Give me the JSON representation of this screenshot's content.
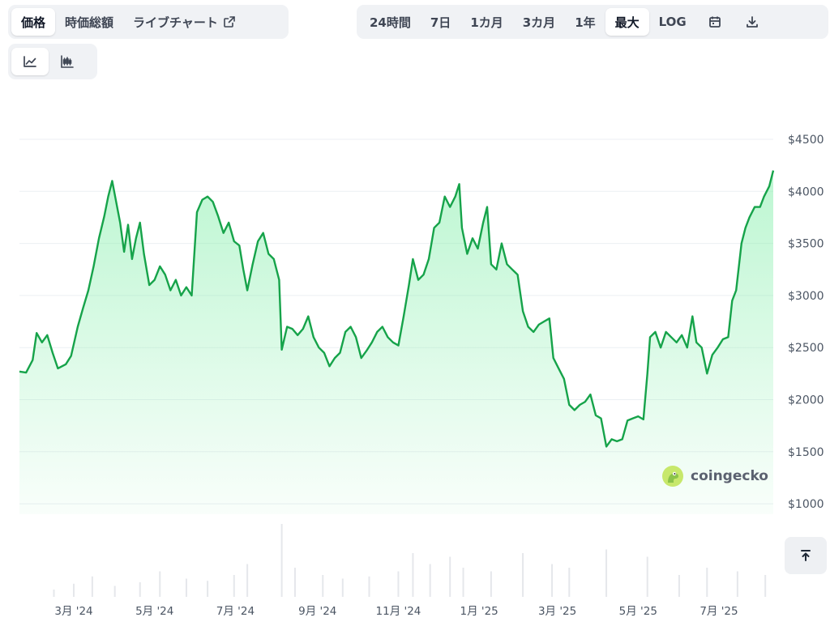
{
  "tabs": [
    {
      "label": "価格",
      "active": true
    },
    {
      "label": "時価総額",
      "active": false
    },
    {
      "label": "ライブチャート",
      "active": false,
      "external": true
    }
  ],
  "ranges": [
    {
      "label": "24時間",
      "active": false
    },
    {
      "label": "7日",
      "active": false
    },
    {
      "label": "1カ月",
      "active": false
    },
    {
      "label": "3カ月",
      "active": false
    },
    {
      "label": "1年",
      "active": false
    },
    {
      "label": "最大",
      "active": true
    },
    {
      "label": "LOG",
      "active": false
    }
  ],
  "range_icons": [
    "calendar-icon",
    "download-icon"
  ],
  "views": [
    {
      "icon": "line-chart-icon",
      "active": true
    },
    {
      "icon": "candlestick-chart-icon",
      "active": false
    }
  ],
  "watermark": {
    "label": "coingecko"
  },
  "colors": {
    "line": "#16a34a",
    "area_top": "#86efac",
    "grid": "#eceff3",
    "volume": "#e5e7eb"
  },
  "chart_data": {
    "type": "area",
    "title": "",
    "xlabel": "",
    "ylabel": "",
    "ylim": [
      800,
      4600
    ],
    "yticks": [
      1000,
      1500,
      2000,
      2500,
      3000,
      3500,
      4000,
      4500
    ],
    "ytick_labels": [
      "$1000",
      "$1500",
      "$2000",
      "$2500",
      "$3000",
      "$3500",
      "$4000",
      "$4500"
    ],
    "x_ticks": [
      {
        "label": "3月 '24",
        "date": "2024-03-01"
      },
      {
        "label": "5月 '24",
        "date": "2024-05-01"
      },
      {
        "label": "7月 '24",
        "date": "2024-07-01"
      },
      {
        "label": "9月 '24",
        "date": "2024-09-01"
      },
      {
        "label": "11月 '24",
        "date": "2024-11-01"
      },
      {
        "label": "1月 '25",
        "date": "2025-01-01"
      },
      {
        "label": "3月 '25",
        "date": "2025-03-01"
      },
      {
        "label": "5月 '25",
        "date": "2025-05-01"
      },
      {
        "label": "7月 '25",
        "date": "2025-07-01"
      }
    ],
    "grid": true,
    "series": [
      {
        "points": [
          [
            "2024-01-20",
            2270
          ],
          [
            "2024-01-25",
            2260
          ],
          [
            "2024-01-30",
            2380
          ],
          [
            "2024-02-02",
            2640
          ],
          [
            "2024-02-06",
            2550
          ],
          [
            "2024-02-10",
            2620
          ],
          [
            "2024-02-14",
            2450
          ],
          [
            "2024-02-18",
            2300
          ],
          [
            "2024-02-24",
            2340
          ],
          [
            "2024-02-28",
            2420
          ],
          [
            "2024-03-04",
            2700
          ],
          [
            "2024-03-08",
            2880
          ],
          [
            "2024-03-12",
            3050
          ],
          [
            "2024-03-16",
            3280
          ],
          [
            "2024-03-20",
            3550
          ],
          [
            "2024-03-24",
            3760
          ],
          [
            "2024-03-27",
            3950
          ],
          [
            "2024-03-30",
            4100
          ],
          [
            "2024-04-02",
            3900
          ],
          [
            "2024-04-05",
            3700
          ],
          [
            "2024-04-08",
            3420
          ],
          [
            "2024-04-11",
            3680
          ],
          [
            "2024-04-14",
            3350
          ],
          [
            "2024-04-17",
            3550
          ],
          [
            "2024-04-20",
            3700
          ],
          [
            "2024-04-23",
            3400
          ],
          [
            "2024-04-27",
            3100
          ],
          [
            "2024-05-01",
            3150
          ],
          [
            "2024-05-05",
            3280
          ],
          [
            "2024-05-09",
            3200
          ],
          [
            "2024-05-13",
            3050
          ],
          [
            "2024-05-17",
            3150
          ],
          [
            "2024-05-21",
            3000
          ],
          [
            "2024-05-25",
            3080
          ],
          [
            "2024-05-29",
            3000
          ],
          [
            "2024-06-02",
            3800
          ],
          [
            "2024-06-06",
            3920
          ],
          [
            "2024-06-10",
            3950
          ],
          [
            "2024-06-14",
            3900
          ],
          [
            "2024-06-18",
            3760
          ],
          [
            "2024-06-22",
            3600
          ],
          [
            "2024-06-26",
            3700
          ],
          [
            "2024-06-30",
            3520
          ],
          [
            "2024-07-04",
            3480
          ],
          [
            "2024-07-07",
            3250
          ],
          [
            "2024-07-10",
            3050
          ],
          [
            "2024-07-14",
            3300
          ],
          [
            "2024-07-18",
            3520
          ],
          [
            "2024-07-22",
            3600
          ],
          [
            "2024-07-26",
            3400
          ],
          [
            "2024-07-30",
            3350
          ],
          [
            "2024-08-03",
            3150
          ],
          [
            "2024-08-05",
            2480
          ],
          [
            "2024-08-09",
            2700
          ],
          [
            "2024-08-13",
            2680
          ],
          [
            "2024-08-17",
            2620
          ],
          [
            "2024-08-21",
            2680
          ],
          [
            "2024-08-25",
            2800
          ],
          [
            "2024-08-29",
            2600
          ],
          [
            "2024-09-02",
            2500
          ],
          [
            "2024-09-06",
            2450
          ],
          [
            "2024-09-10",
            2320
          ],
          [
            "2024-09-14",
            2400
          ],
          [
            "2024-09-18",
            2450
          ],
          [
            "2024-09-22",
            2650
          ],
          [
            "2024-09-26",
            2700
          ],
          [
            "2024-09-30",
            2600
          ],
          [
            "2024-10-04",
            2400
          ],
          [
            "2024-10-08",
            2470
          ],
          [
            "2024-10-12",
            2550
          ],
          [
            "2024-10-16",
            2650
          ],
          [
            "2024-10-20",
            2700
          ],
          [
            "2024-10-24",
            2600
          ],
          [
            "2024-10-28",
            2550
          ],
          [
            "2024-11-01",
            2520
          ],
          [
            "2024-11-05",
            2800
          ],
          [
            "2024-11-09",
            3100
          ],
          [
            "2024-11-12",
            3350
          ],
          [
            "2024-11-16",
            3150
          ],
          [
            "2024-11-20",
            3200
          ],
          [
            "2024-11-24",
            3350
          ],
          [
            "2024-11-28",
            3650
          ],
          [
            "2024-12-02",
            3700
          ],
          [
            "2024-12-06",
            3950
          ],
          [
            "2024-12-10",
            3850
          ],
          [
            "2024-12-14",
            3950
          ],
          [
            "2024-12-17",
            4070
          ],
          [
            "2024-12-19",
            3650
          ],
          [
            "2024-12-23",
            3400
          ],
          [
            "2024-12-27",
            3550
          ],
          [
            "2024-12-31",
            3450
          ],
          [
            "2025-01-04",
            3700
          ],
          [
            "2025-01-07",
            3850
          ],
          [
            "2025-01-10",
            3300
          ],
          [
            "2025-01-14",
            3250
          ],
          [
            "2025-01-18",
            3500
          ],
          [
            "2025-01-22",
            3300
          ],
          [
            "2025-01-26",
            3250
          ],
          [
            "2025-01-30",
            3200
          ],
          [
            "2025-02-03",
            2850
          ],
          [
            "2025-02-07",
            2700
          ],
          [
            "2025-02-11",
            2650
          ],
          [
            "2025-02-15",
            2720
          ],
          [
            "2025-02-19",
            2750
          ],
          [
            "2025-02-23",
            2780
          ],
          [
            "2025-02-26",
            2400
          ],
          [
            "2025-03-02",
            2300
          ],
          [
            "2025-03-06",
            2200
          ],
          [
            "2025-03-10",
            1950
          ],
          [
            "2025-03-14",
            1900
          ],
          [
            "2025-03-18",
            1950
          ],
          [
            "2025-03-22",
            1980
          ],
          [
            "2025-03-26",
            2050
          ],
          [
            "2025-03-30",
            1850
          ],
          [
            "2025-04-03",
            1820
          ],
          [
            "2025-04-07",
            1550
          ],
          [
            "2025-04-11",
            1620
          ],
          [
            "2025-04-15",
            1600
          ],
          [
            "2025-04-19",
            1620
          ],
          [
            "2025-04-23",
            1800
          ],
          [
            "2025-04-27",
            1820
          ],
          [
            "2025-05-01",
            1840
          ],
          [
            "2025-05-05",
            1810
          ],
          [
            "2025-05-08",
            2250
          ],
          [
            "2025-05-10",
            2600
          ],
          [
            "2025-05-14",
            2650
          ],
          [
            "2025-05-18",
            2500
          ],
          [
            "2025-05-22",
            2650
          ],
          [
            "2025-05-26",
            2600
          ],
          [
            "2025-05-30",
            2550
          ],
          [
            "2025-06-03",
            2620
          ],
          [
            "2025-06-07",
            2500
          ],
          [
            "2025-06-11",
            2800
          ],
          [
            "2025-06-14",
            2550
          ],
          [
            "2025-06-18",
            2500
          ],
          [
            "2025-06-22",
            2250
          ],
          [
            "2025-06-26",
            2430
          ],
          [
            "2025-06-30",
            2500
          ],
          [
            "2025-07-04",
            2580
          ],
          [
            "2025-07-08",
            2600
          ],
          [
            "2025-07-11",
            2950
          ],
          [
            "2025-07-14",
            3050
          ],
          [
            "2025-07-18",
            3500
          ],
          [
            "2025-07-21",
            3650
          ],
          [
            "2025-07-24",
            3750
          ],
          [
            "2025-07-28",
            3850
          ],
          [
            "2025-08-01",
            3850
          ],
          [
            "2025-08-04",
            3950
          ],
          [
            "2025-08-08",
            4050
          ],
          [
            "2025-08-11",
            4200
          ]
        ]
      }
    ],
    "volume": [
      [
        "2024-02-15",
        0.1
      ],
      [
        "2024-03-01",
        0.18
      ],
      [
        "2024-03-15",
        0.28
      ],
      [
        "2024-04-01",
        0.15
      ],
      [
        "2024-04-20",
        0.2
      ],
      [
        "2024-05-05",
        0.35
      ],
      [
        "2024-05-25",
        0.25
      ],
      [
        "2024-06-10",
        0.22
      ],
      [
        "2024-06-30",
        0.3
      ],
      [
        "2024-07-10",
        0.45
      ],
      [
        "2024-08-05",
        1.0
      ],
      [
        "2024-08-15",
        0.4
      ],
      [
        "2024-09-05",
        0.3
      ],
      [
        "2024-09-20",
        0.25
      ],
      [
        "2024-10-10",
        0.28
      ],
      [
        "2024-11-01",
        0.35
      ],
      [
        "2024-11-12",
        0.6
      ],
      [
        "2024-11-25",
        0.45
      ],
      [
        "2024-12-10",
        0.55
      ],
      [
        "2024-12-20",
        0.4
      ],
      [
        "2025-01-10",
        0.35
      ],
      [
        "2025-02-03",
        0.6
      ],
      [
        "2025-02-25",
        0.45
      ],
      [
        "2025-03-10",
        0.4
      ],
      [
        "2025-04-07",
        0.65
      ],
      [
        "2025-05-08",
        0.55
      ],
      [
        "2025-06-01",
        0.3
      ],
      [
        "2025-06-22",
        0.4
      ],
      [
        "2025-07-15",
        0.35
      ],
      [
        "2025-08-05",
        0.3
      ]
    ]
  }
}
